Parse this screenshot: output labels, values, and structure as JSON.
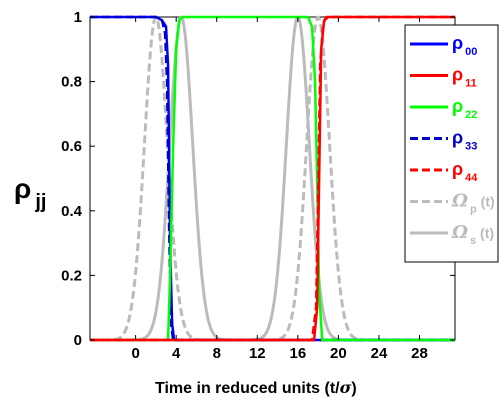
{
  "chart_data": {
    "type": "line",
    "xlabel_text": "Time in reduced units (t/",
    "xlabel_sigma": "σ",
    "xlabel_close": ")",
    "ylabel_main": "ρ",
    "ylabel_sub": "jj",
    "xlim": [
      -4.5,
      31.5
    ],
    "ylim": [
      0,
      1
    ],
    "x_ticks": [
      0,
      4,
      8,
      12,
      16,
      20,
      24,
      28
    ],
    "y_ticks": [
      0,
      0.2,
      0.4,
      0.6,
      0.8,
      1
    ],
    "x_tick_labels": [
      "0",
      "4",
      "8",
      "12",
      "16",
      "20",
      "24",
      "28"
    ],
    "y_tick_labels": [
      "0",
      "0.2",
      "0.4",
      "0.6",
      "0.8",
      "1"
    ],
    "grid": false,
    "legend_position": "right",
    "pulses": {
      "p": [
        2.0,
        18.0
      ],
      "s": [
        4.5,
        16.0
      ]
    },
    "series": [
      {
        "name_main": "ρ",
        "name_sub": "00",
        "color": "#0000ff",
        "dash": "solid",
        "x": [
          -4.5,
          2.0,
          2.6,
          3.0,
          3.2,
          3.4,
          3.6,
          3.8,
          31.5
        ],
        "y": [
          1,
          1,
          0.99,
          0.97,
          0.85,
          0.3,
          0.05,
          0.0,
          0.0
        ]
      },
      {
        "name_main": "ρ",
        "name_sub": "11",
        "color": "#ff0000",
        "dash": "solid",
        "x": [
          -4.5,
          17.6,
          17.9,
          18.1,
          18.3,
          18.6,
          19.0,
          31.5
        ],
        "y": [
          0,
          0,
          0.1,
          0.5,
          0.9,
          0.99,
          1,
          1
        ]
      },
      {
        "name_main": "ρ",
        "name_sub": "22",
        "color": "#00ff00",
        "dash": "solid",
        "x": [
          -4.5,
          3.2,
          3.4,
          3.7,
          4.0,
          4.3,
          4.6,
          17.0,
          17.4,
          17.7,
          17.9,
          18.1,
          18.4,
          31.5
        ],
        "y": [
          0,
          0,
          0.2,
          0.6,
          0.9,
          0.99,
          1,
          1,
          0.97,
          0.8,
          0.5,
          0.15,
          0,
          0
        ]
      },
      {
        "name_main": "ρ",
        "name_sub": "33",
        "color": "#0000cc",
        "dash": "dash",
        "x": [
          -4.5,
          2.0,
          2.6,
          2.9,
          3.1,
          3.3,
          3.5,
          3.7,
          31.5
        ],
        "y": [
          1,
          1,
          0.99,
          0.95,
          0.8,
          0.35,
          0.05,
          0.0,
          0.0
        ]
      },
      {
        "name_main": "ρ",
        "name_sub": "44",
        "color": "#ff0000",
        "dash": "dash",
        "x": [
          -4.5,
          17.4,
          17.8,
          18.0,
          18.2,
          18.5,
          18.8,
          31.5
        ],
        "y": [
          0,
          0,
          0.1,
          0.45,
          0.85,
          0.98,
          1,
          1
        ]
      },
      {
        "name_main": "Ω",
        "name_sub": "p",
        "name_suffix": " (t)",
        "color": "#bbbbbb",
        "dash": "dash",
        "pulse": "p"
      },
      {
        "name_main": "Ω",
        "name_sub": "s",
        "name_suffix": " (t)",
        "color": "#bbbbbb",
        "dash": "solid",
        "pulse": "s"
      }
    ]
  }
}
